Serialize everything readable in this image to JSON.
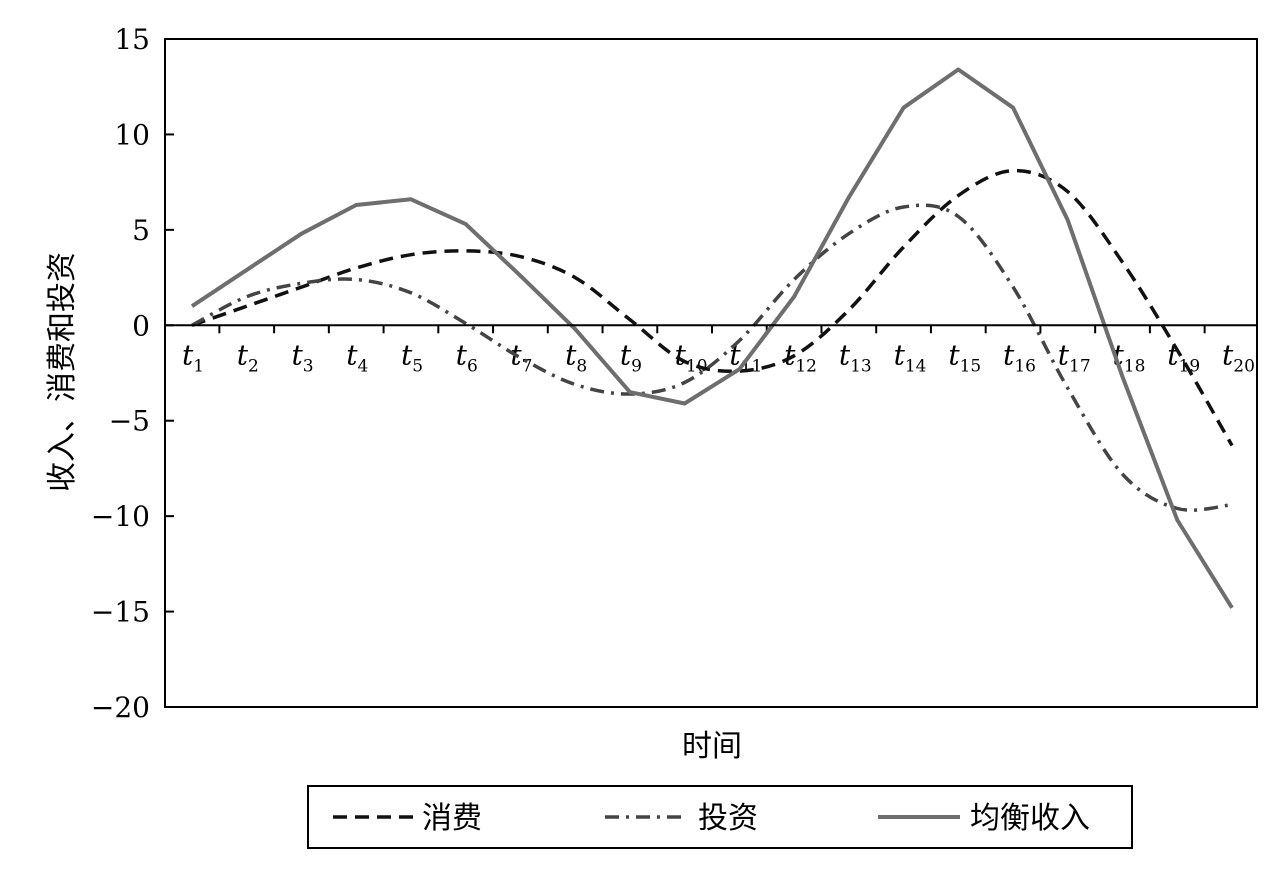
{
  "chart_data": {
    "type": "line",
    "xlabel": "时间",
    "ylabel": "收入、消费和投资",
    "ylim": [
      -20,
      15
    ],
    "yticks": [
      15,
      10,
      5,
      0,
      -5,
      -10,
      -15,
      -20
    ],
    "ytick_labels": [
      "15",
      "10",
      "5",
      "0",
      "−5",
      "−10",
      "−15",
      "−20"
    ],
    "categories": [
      {
        "base": "t",
        "sub": "1"
      },
      {
        "base": "t",
        "sub": "2"
      },
      {
        "base": "t",
        "sub": "3"
      },
      {
        "base": "t",
        "sub": "4"
      },
      {
        "base": "t",
        "sub": "5"
      },
      {
        "base": "t",
        "sub": "6"
      },
      {
        "base": "t",
        "sub": "7"
      },
      {
        "base": "t",
        "sub": "8"
      },
      {
        "base": "t",
        "sub": "9"
      },
      {
        "base": "t",
        "sub": "10"
      },
      {
        "base": "t",
        "sub": "11"
      },
      {
        "base": "t",
        "sub": "12"
      },
      {
        "base": "t",
        "sub": "13"
      },
      {
        "base": "t",
        "sub": "14"
      },
      {
        "base": "t",
        "sub": "15"
      },
      {
        "base": "t",
        "sub": "16"
      },
      {
        "base": "t",
        "sub": "17"
      },
      {
        "base": "t",
        "sub": "18"
      },
      {
        "base": "t",
        "sub": "19"
      },
      {
        "base": "t",
        "sub": "20"
      }
    ],
    "grid": false,
    "legend_position": "bottom",
    "series": [
      {
        "name": "消费",
        "style": "dashed",
        "color": "#111111",
        "smooth": true,
        "values": [
          0.0,
          1.0,
          2.0,
          3.0,
          3.7,
          3.9,
          3.6,
          2.5,
          0.3,
          -1.9,
          -2.4,
          -1.6,
          0.8,
          4.1,
          6.8,
          8.1,
          7.0,
          3.3,
          -1.3,
          -6.3
        ]
      },
      {
        "name": "投资",
        "style": "dashdot",
        "color": "#444444",
        "smooth": true,
        "values": [
          0.0,
          1.5,
          2.2,
          2.4,
          1.7,
          0.1,
          -1.7,
          -3.1,
          -3.6,
          -3.0,
          -0.8,
          2.4,
          4.8,
          6.2,
          5.7,
          2.0,
          -3.3,
          -7.8,
          -9.6,
          -9.4
        ]
      },
      {
        "name": "均衡收入",
        "style": "solid",
        "color": "#6e6e6e",
        "smooth": false,
        "values": [
          1.0,
          2.9,
          4.8,
          6.3,
          6.6,
          5.3,
          2.6,
          -0.2,
          -3.5,
          -4.1,
          -2.3,
          1.5,
          6.7,
          11.4,
          13.4,
          11.4,
          5.5,
          -2.7,
          -10.2,
          -14.8
        ]
      }
    ]
  }
}
